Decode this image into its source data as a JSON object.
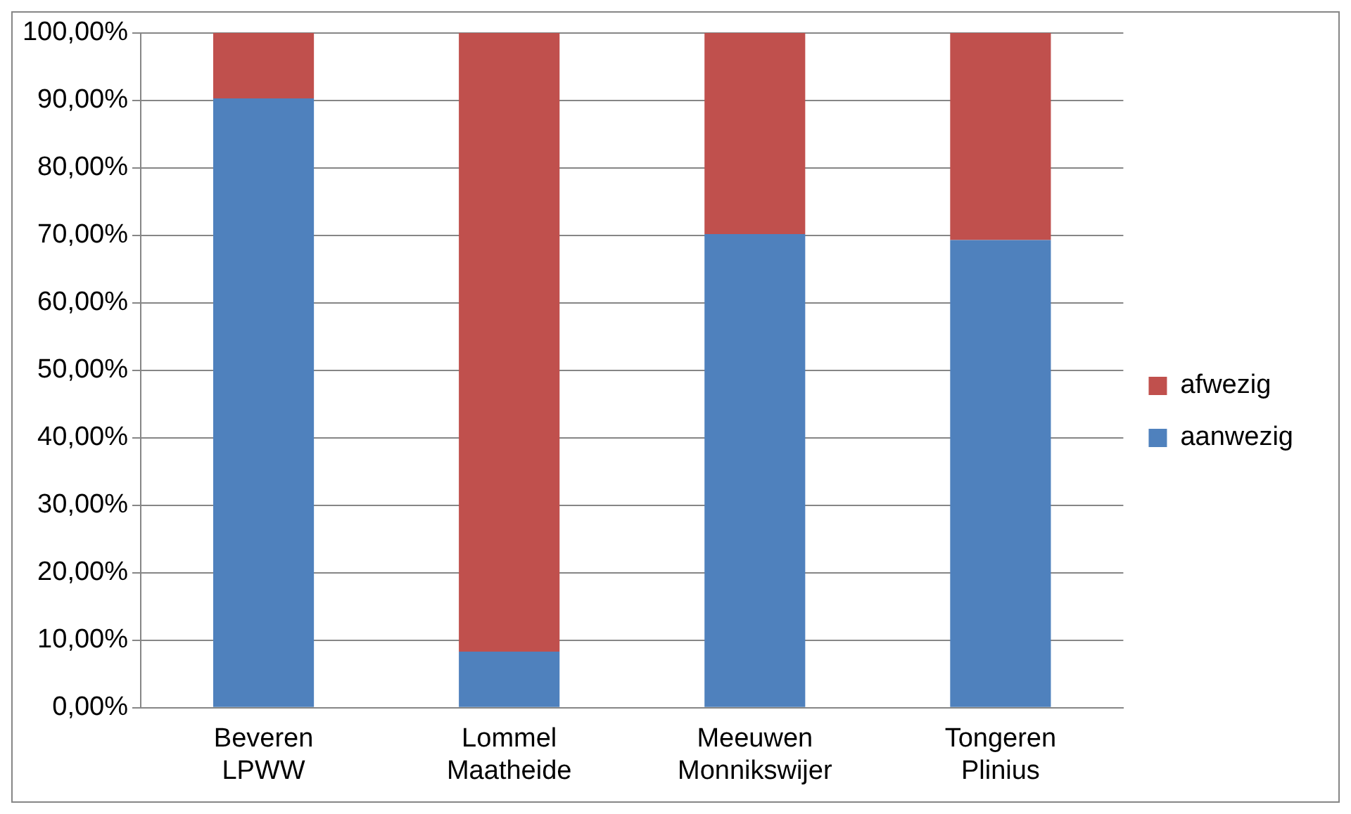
{
  "chart_data": {
    "type": "bar",
    "stacked": true,
    "categories": [
      "Beveren LPWW",
      "Lommel Maatheide",
      "Meeuwen Monnikswijer",
      "Tongeren Plinius"
    ],
    "series": [
      {
        "name": "aanwezig",
        "color": "#4f81bd",
        "values": [
          90.3,
          8.3,
          70.2,
          69.3
        ]
      },
      {
        "name": "afwezig",
        "color": "#c0504d",
        "values": [
          9.7,
          91.7,
          29.8,
          30.7
        ]
      }
    ],
    "ylim": [
      0,
      100
    ],
    "yticks": [
      {
        "value": 0,
        "label": "0,00%"
      },
      {
        "value": 10,
        "label": "10,00%"
      },
      {
        "value": 20,
        "label": "20,00%"
      },
      {
        "value": 30,
        "label": "30,00%"
      },
      {
        "value": 40,
        "label": "40,00%"
      },
      {
        "value": 50,
        "label": "50,00%"
      },
      {
        "value": 60,
        "label": "60,00%"
      },
      {
        "value": 70,
        "label": "70,00%"
      },
      {
        "value": 80,
        "label": "80,00%"
      },
      {
        "value": 90,
        "label": "90,00%"
      },
      {
        "value": 100,
        "label": "100,00%"
      }
    ],
    "grid": "y",
    "legend": "right"
  }
}
